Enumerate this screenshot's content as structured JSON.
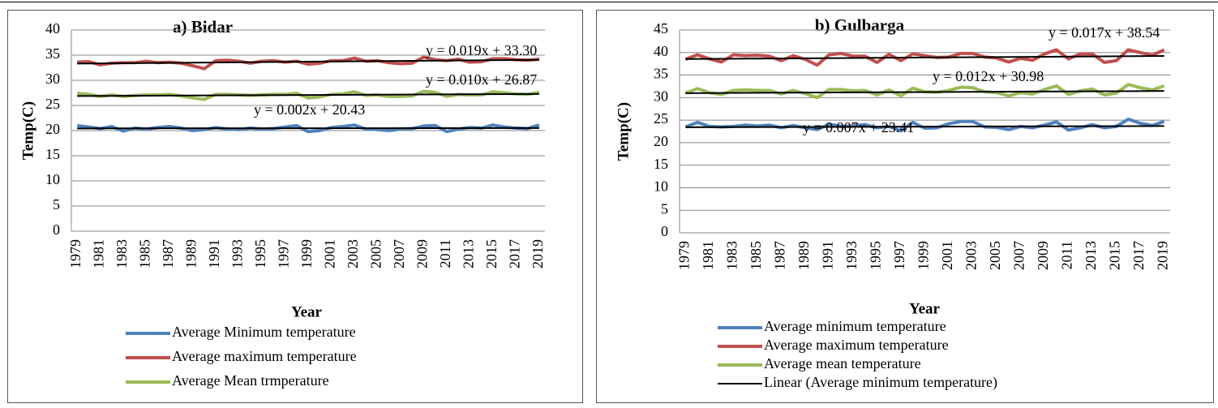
{
  "chart_data": [
    {
      "type": "line",
      "title": "a) Bidar",
      "x_label": "Year",
      "y_label": "Temp(C)",
      "categories": [
        "1979",
        null,
        "1981",
        null,
        "1983",
        null,
        "1985",
        null,
        "1987",
        null,
        "1989",
        null,
        "1991",
        null,
        "1993",
        null,
        "1995",
        null,
        "1997",
        null,
        "1999",
        null,
        "2001",
        null,
        "2003",
        null,
        "2005",
        null,
        "2007",
        null,
        "2009",
        null,
        "2011",
        null,
        "2013",
        null,
        "2015",
        null,
        "2017",
        null,
        "2019"
      ],
      "ylim": [
        0,
        40
      ],
      "yticks": [
        0,
        5,
        10,
        15,
        20,
        25,
        30,
        35,
        40
      ],
      "grid": true,
      "series": [
        {
          "name": "Average Minimum temperature",
          "color": "#4f81bd",
          "values": [
            21.0,
            20.7,
            20.4,
            20.8,
            19.9,
            20.5,
            20.3,
            20.6,
            20.8,
            20.5,
            20.0,
            20.2,
            20.6,
            20.3,
            20.2,
            20.5,
            20.3,
            20.4,
            20.7,
            21.0,
            19.8,
            20.0,
            20.6,
            20.8,
            21.1,
            20.3,
            20.2,
            20.0,
            20.3,
            20.4,
            20.9,
            21.0,
            19.8,
            20.3,
            20.6,
            20.5,
            21.1,
            20.7,
            20.5,
            20.4,
            21.1
          ]
        },
        {
          "name": "Average maximum temperature",
          "color": "#c0504d",
          "values": [
            33.6,
            33.7,
            33.1,
            33.4,
            33.5,
            33.5,
            33.8,
            33.5,
            33.6,
            33.4,
            32.9,
            32.3,
            33.9,
            34.0,
            33.8,
            33.4,
            33.8,
            33.9,
            33.6,
            33.8,
            33.2,
            33.4,
            33.9,
            33.9,
            34.4,
            33.8,
            33.9,
            33.5,
            33.3,
            33.4,
            34.6,
            34.1,
            33.9,
            34.2,
            33.6,
            33.7,
            34.3,
            34.3,
            34.1,
            34.0,
            34.2
          ]
        },
        {
          "name": "Average Mean trmperature",
          "color": "#9bbb59",
          "values": [
            27.4,
            27.2,
            26.8,
            27.1,
            26.8,
            27.0,
            27.1,
            27.1,
            27.2,
            26.9,
            26.5,
            26.2,
            27.2,
            27.2,
            27.1,
            27.0,
            27.1,
            27.2,
            27.2,
            27.4,
            26.5,
            26.7,
            27.2,
            27.3,
            27.7,
            27.0,
            27.1,
            26.8,
            26.8,
            26.9,
            27.8,
            27.6,
            26.8,
            27.2,
            27.1,
            27.1,
            27.7,
            27.5,
            27.3,
            27.2,
            27.6
          ]
        }
      ],
      "trendlines": [
        {
          "slope": 0.002,
          "intercept": 20.43,
          "label": "y = 0.002x + 20.43",
          "color": "#000000"
        },
        {
          "slope": 0.019,
          "intercept": 33.3,
          "label": "y = 0.019x + 33.30",
          "color": "#000000"
        },
        {
          "slope": 0.01,
          "intercept": 26.87,
          "label": "y = 0.010x + 26.87",
          "color": "#000000"
        }
      ]
    },
    {
      "type": "line",
      "title": "b) Gulbarga",
      "x_label": "Year",
      "y_label": "Temp(C)",
      "categories": [
        "1979",
        null,
        "1981",
        null,
        "1983",
        null,
        "1985",
        null,
        "1987",
        null,
        "1989",
        null,
        "1991",
        null,
        "1993",
        null,
        "1995",
        null,
        "1997",
        null,
        "1999",
        null,
        "2001",
        null,
        "2003",
        null,
        "2005",
        null,
        "2007",
        null,
        "2009",
        null,
        "2011",
        null,
        "2013",
        null,
        "2015",
        null,
        "2017",
        null,
        "2019"
      ],
      "ylim": [
        0,
        45
      ],
      "yticks": [
        0,
        5,
        10,
        15,
        20,
        25,
        30,
        35,
        40,
        45
      ],
      "grid": true,
      "series": [
        {
          "name": "Average minimum temperature",
          "color": "#4f81bd",
          "values": [
            23.5,
            24.5,
            23.6,
            23.5,
            23.6,
            23.9,
            23.7,
            23.9,
            23.3,
            23.8,
            23.3,
            22.9,
            24.1,
            23.6,
            23.7,
            24.0,
            23.3,
            23.6,
            22.6,
            24.5,
            23.2,
            23.3,
            24.2,
            24.7,
            24.7,
            23.5,
            23.4,
            22.9,
            23.6,
            23.3,
            23.9,
            24.6,
            22.8,
            23.3,
            24.0,
            23.3,
            23.6,
            25.2,
            24.3,
            23.8,
            24.7
          ]
        },
        {
          "name": "Average maximum  temperature",
          "color": "#c0504d",
          "values": [
            38.5,
            39.5,
            38.6,
            37.9,
            39.5,
            39.3,
            39.4,
            39.2,
            38.2,
            39.3,
            38.5,
            37.2,
            39.5,
            39.8,
            39.2,
            39.2,
            37.8,
            39.6,
            38.2,
            39.7,
            39.3,
            38.9,
            39.0,
            39.8,
            39.8,
            39.0,
            38.8,
            37.9,
            38.7,
            38.3,
            39.7,
            40.6,
            38.6,
            39.7,
            39.7,
            37.8,
            38.2,
            40.6,
            40.0,
            39.4,
            40.6
          ]
        },
        {
          "name": "Average mean temperature",
          "color": "#9bbb59",
          "values": [
            31.0,
            32.0,
            31.1,
            30.7,
            31.6,
            31.7,
            31.6,
            31.6,
            30.8,
            31.6,
            30.9,
            30.0,
            31.8,
            31.8,
            31.5,
            31.6,
            30.6,
            31.7,
            30.4,
            32.1,
            31.3,
            31.2,
            31.6,
            32.3,
            32.2,
            31.3,
            31.1,
            30.4,
            31.1,
            30.8,
            31.8,
            32.6,
            30.7,
            31.5,
            31.9,
            30.6,
            31.0,
            32.9,
            32.2,
            31.7,
            32.6
          ]
        }
      ],
      "trendlines": [
        {
          "name": "Linear (Average minimum temperature)",
          "slope": 0.007,
          "intercept": 23.41,
          "label": "y = 0.007x + 23.41",
          "color": "#000000"
        },
        {
          "slope": 0.017,
          "intercept": 38.54,
          "label": "y = 0.017x + 38.54",
          "color": "#000000"
        },
        {
          "slope": 0.012,
          "intercept": 30.98,
          "label": "y = 0.012x + 30.98",
          "color": "#000000"
        }
      ]
    }
  ]
}
